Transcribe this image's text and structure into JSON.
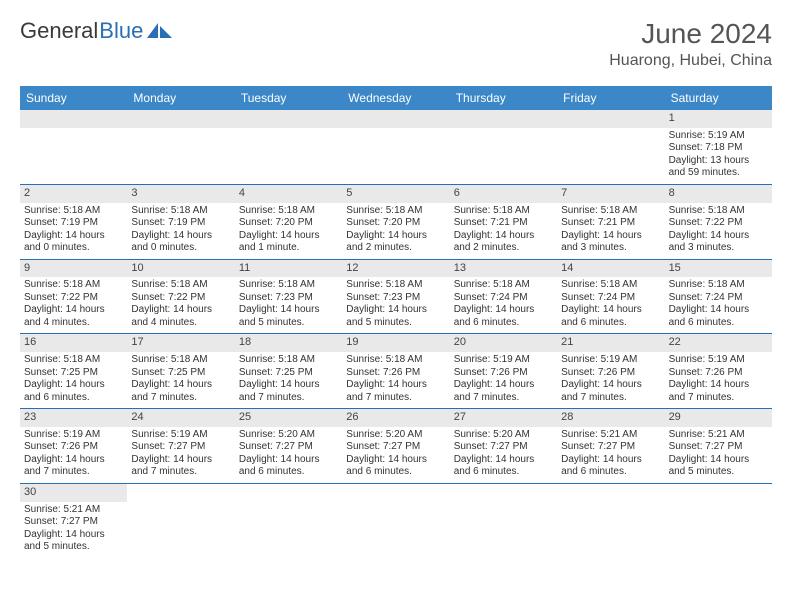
{
  "brand": {
    "part1": "General",
    "part2": "Blue"
  },
  "title": "June 2024",
  "location": "Huarong, Hubei, China",
  "colors": {
    "header_bg": "#3b87c8",
    "row_divider": "#2a6fb5",
    "daynum_bg": "#e9e9e9",
    "brand_blue": "#2a6fb5"
  },
  "dayNames": [
    "Sunday",
    "Monday",
    "Tuesday",
    "Wednesday",
    "Thursday",
    "Friday",
    "Saturday"
  ],
  "startOffset": 6,
  "days": [
    {
      "n": 1,
      "sr": "5:19 AM",
      "ss": "7:18 PM",
      "dl": "13 hours and 59 minutes."
    },
    {
      "n": 2,
      "sr": "5:18 AM",
      "ss": "7:19 PM",
      "dl": "14 hours and 0 minutes."
    },
    {
      "n": 3,
      "sr": "5:18 AM",
      "ss": "7:19 PM",
      "dl": "14 hours and 0 minutes."
    },
    {
      "n": 4,
      "sr": "5:18 AM",
      "ss": "7:20 PM",
      "dl": "14 hours and 1 minute."
    },
    {
      "n": 5,
      "sr": "5:18 AM",
      "ss": "7:20 PM",
      "dl": "14 hours and 2 minutes."
    },
    {
      "n": 6,
      "sr": "5:18 AM",
      "ss": "7:21 PM",
      "dl": "14 hours and 2 minutes."
    },
    {
      "n": 7,
      "sr": "5:18 AM",
      "ss": "7:21 PM",
      "dl": "14 hours and 3 minutes."
    },
    {
      "n": 8,
      "sr": "5:18 AM",
      "ss": "7:22 PM",
      "dl": "14 hours and 3 minutes."
    },
    {
      "n": 9,
      "sr": "5:18 AM",
      "ss": "7:22 PM",
      "dl": "14 hours and 4 minutes."
    },
    {
      "n": 10,
      "sr": "5:18 AM",
      "ss": "7:22 PM",
      "dl": "14 hours and 4 minutes."
    },
    {
      "n": 11,
      "sr": "5:18 AM",
      "ss": "7:23 PM",
      "dl": "14 hours and 5 minutes."
    },
    {
      "n": 12,
      "sr": "5:18 AM",
      "ss": "7:23 PM",
      "dl": "14 hours and 5 minutes."
    },
    {
      "n": 13,
      "sr": "5:18 AM",
      "ss": "7:24 PM",
      "dl": "14 hours and 6 minutes."
    },
    {
      "n": 14,
      "sr": "5:18 AM",
      "ss": "7:24 PM",
      "dl": "14 hours and 6 minutes."
    },
    {
      "n": 15,
      "sr": "5:18 AM",
      "ss": "7:24 PM",
      "dl": "14 hours and 6 minutes."
    },
    {
      "n": 16,
      "sr": "5:18 AM",
      "ss": "7:25 PM",
      "dl": "14 hours and 6 minutes."
    },
    {
      "n": 17,
      "sr": "5:18 AM",
      "ss": "7:25 PM",
      "dl": "14 hours and 7 minutes."
    },
    {
      "n": 18,
      "sr": "5:18 AM",
      "ss": "7:25 PM",
      "dl": "14 hours and 7 minutes."
    },
    {
      "n": 19,
      "sr": "5:18 AM",
      "ss": "7:26 PM",
      "dl": "14 hours and 7 minutes."
    },
    {
      "n": 20,
      "sr": "5:19 AM",
      "ss": "7:26 PM",
      "dl": "14 hours and 7 minutes."
    },
    {
      "n": 21,
      "sr": "5:19 AM",
      "ss": "7:26 PM",
      "dl": "14 hours and 7 minutes."
    },
    {
      "n": 22,
      "sr": "5:19 AM",
      "ss": "7:26 PM",
      "dl": "14 hours and 7 minutes."
    },
    {
      "n": 23,
      "sr": "5:19 AM",
      "ss": "7:26 PM",
      "dl": "14 hours and 7 minutes."
    },
    {
      "n": 24,
      "sr": "5:19 AM",
      "ss": "7:27 PM",
      "dl": "14 hours and 7 minutes."
    },
    {
      "n": 25,
      "sr": "5:20 AM",
      "ss": "7:27 PM",
      "dl": "14 hours and 6 minutes."
    },
    {
      "n": 26,
      "sr": "5:20 AM",
      "ss": "7:27 PM",
      "dl": "14 hours and 6 minutes."
    },
    {
      "n": 27,
      "sr": "5:20 AM",
      "ss": "7:27 PM",
      "dl": "14 hours and 6 minutes."
    },
    {
      "n": 28,
      "sr": "5:21 AM",
      "ss": "7:27 PM",
      "dl": "14 hours and 6 minutes."
    },
    {
      "n": 29,
      "sr": "5:21 AM",
      "ss": "7:27 PM",
      "dl": "14 hours and 5 minutes."
    },
    {
      "n": 30,
      "sr": "5:21 AM",
      "ss": "7:27 PM",
      "dl": "14 hours and 5 minutes."
    }
  ],
  "labels": {
    "sunrise": "Sunrise:",
    "sunset": "Sunset:",
    "daylight": "Daylight:"
  }
}
